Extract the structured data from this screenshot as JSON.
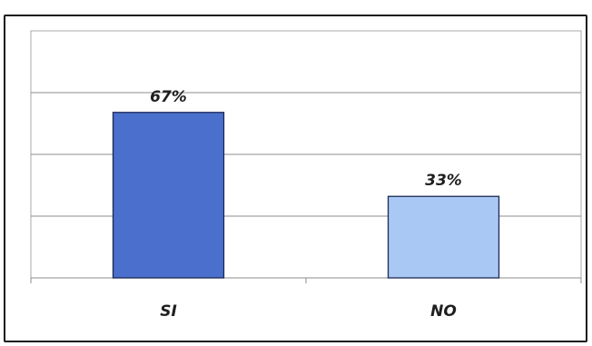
{
  "chart_data": {
    "type": "bar",
    "categories": [
      "SI",
      "NO"
    ],
    "values": [
      67,
      33
    ],
    "data_labels": [
      "67%",
      "33%"
    ],
    "ylim": [
      0,
      100
    ],
    "grid": true,
    "legend": "none",
    "colors": [
      "#4a6fcc",
      "#a9c8f4"
    ]
  }
}
